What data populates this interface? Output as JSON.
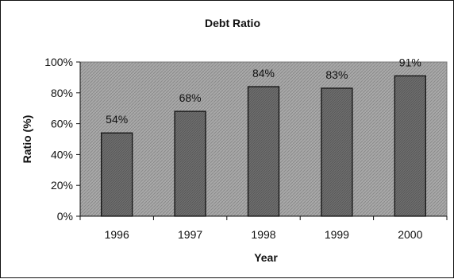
{
  "chart_data": {
    "type": "bar",
    "title": "Debt Ratio",
    "xlabel": "Year",
    "ylabel": "Ratio (%)",
    "categories": [
      "1996",
      "1997",
      "1998",
      "1999",
      "2000"
    ],
    "values": [
      54,
      68,
      84,
      83,
      91
    ],
    "data_labels": [
      "54%",
      "68%",
      "84%",
      "83%",
      "91%"
    ],
    "ylim": [
      0,
      100
    ],
    "yticks": [
      0,
      20,
      40,
      60,
      80,
      100
    ],
    "ytick_labels": [
      "0%",
      "20%",
      "40%",
      "60%",
      "80%",
      "100%"
    ],
    "grid": false,
    "legend": "none",
    "colors": {
      "plot_background": "#a9a9a9",
      "bar_fill": "#6e6e6e",
      "bar_stroke": "#111111"
    }
  }
}
